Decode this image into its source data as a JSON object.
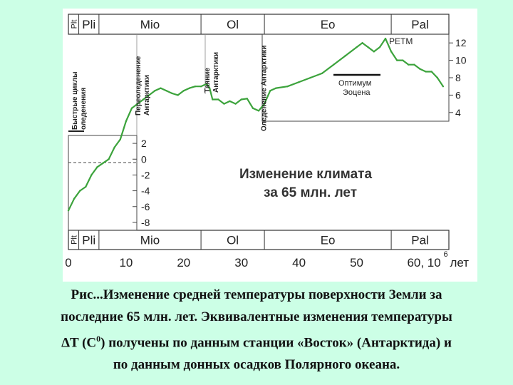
{
  "figure": {
    "era_bands": {
      "top": [
        {
          "label": "Plt",
          "x0": 0,
          "x1": 1.8,
          "small": true
        },
        {
          "label": "Pli",
          "x0": 1.8,
          "x1": 5.3,
          "small": false
        },
        {
          "label": "Mio",
          "x0": 5.3,
          "x1": 23,
          "small": false
        },
        {
          "label": "Ol",
          "x0": 23,
          "x1": 34,
          "small": false
        },
        {
          "label": "Eo",
          "x0": 34,
          "x1": 56,
          "small": false
        },
        {
          "label": "Pal",
          "x0": 56,
          "x1": 66,
          "small": false
        }
      ],
      "bottom": [
        {
          "label": "Plt",
          "x0": 0,
          "x1": 1.8,
          "small": true
        },
        {
          "label": "Pli",
          "x0": 1.8,
          "x1": 5.3,
          "small": false
        },
        {
          "label": "Mio",
          "x0": 5.3,
          "x1": 23,
          "small": false
        },
        {
          "label": "Ol",
          "x0": 23,
          "x1": 34,
          "small": false
        },
        {
          "label": "Eo",
          "x0": 34,
          "x1": 56,
          "small": false
        },
        {
          "label": "Pal",
          "x0": 56,
          "x1": 66,
          "small": false
        }
      ]
    },
    "events": [
      {
        "text": [
          "Быстрые циклы",
          "оледенения"
        ],
        "x": 1.5
      },
      {
        "text": [
          "Переоледенение",
          "Антарктики"
        ],
        "x": 12.5
      },
      {
        "text": [
          "Таяние",
          "Антарктики"
        ],
        "x": 24.5
      },
      {
        "text": [
          "Оледенение Антарктики"
        ],
        "x": 34.3
      }
    ],
    "petm_label": "PETM",
    "optimum_label": [
      "Оптимум",
      "Эоцена"
    ],
    "title_lines": [
      "Изменение климата",
      "за 65 млн. лет"
    ],
    "x_unit_label": "лет"
  },
  "chart_data": {
    "type": "line",
    "xlim": [
      0,
      66
    ],
    "xticks": [
      "0",
      "10",
      "20",
      "30",
      "40",
      "50",
      "60, 10"
    ],
    "xtick_values": [
      0,
      10,
      20,
      30,
      40,
      50,
      60
    ],
    "x_exponent": "6",
    "right_axis": {
      "ylim": [
        3,
        13
      ],
      "ticks": [
        4,
        6,
        8,
        10,
        12
      ]
    },
    "delta_axis": {
      "ylim": [
        -9,
        3
      ],
      "ticks": [
        2,
        0,
        -2,
        -4,
        -6,
        -8
      ],
      "tick_labels": [
        "2",
        "0",
        "-2",
        "-4",
        "-6",
        "-8"
      ]
    },
    "series": [
      {
        "color": "#3ca33c",
        "x": [
          0,
          1,
          2,
          3,
          4,
          5,
          6,
          7,
          8,
          9,
          10,
          11,
          12,
          13,
          14,
          15,
          16,
          17,
          18,
          19,
          20,
          21,
          22,
          23,
          24,
          24.5,
          25,
          26,
          27,
          28,
          29,
          30,
          31,
          32,
          33,
          34,
          35,
          36,
          38,
          40,
          42,
          44,
          46,
          48,
          50,
          51,
          52,
          53,
          54,
          55,
          56,
          57,
          58,
          59,
          60,
          61,
          62,
          63,
          64,
          65
        ],
        "y": [
          -6.5,
          -5,
          -4,
          -3.5,
          -2,
          -1,
          -0.5,
          0,
          1.5,
          2.5,
          3,
          4.5,
          5,
          5.5,
          6,
          6.5,
          6.8,
          6.5,
          6.2,
          6,
          6.5,
          6.8,
          7,
          7,
          7.3,
          6.8,
          5.5,
          5.5,
          5,
          5.3,
          5,
          5.5,
          5.6,
          4.5,
          4.2,
          5,
          6.5,
          6.8,
          7,
          7.5,
          8,
          8.5,
          9.5,
          10.5,
          11.5,
          12,
          11.5,
          11,
          11.5,
          12.5,
          11,
          10,
          10,
          9.5,
          9.5,
          9,
          8.7,
          8.7,
          8,
          7
        ]
      }
    ]
  },
  "caption": {
    "line1": "Рис...Изменение средней температуры поверхности Земли за",
    "line2": "последние 65 млн. лет. Эквивалентные изменения температуры",
    "line3_a": "ΔT (C",
    "line3_sup": "0",
    "line3_b": ") получены по данным станции «Восток» (Антарктида) и",
    "line4": "по данным донных осадков Полярного океана."
  }
}
